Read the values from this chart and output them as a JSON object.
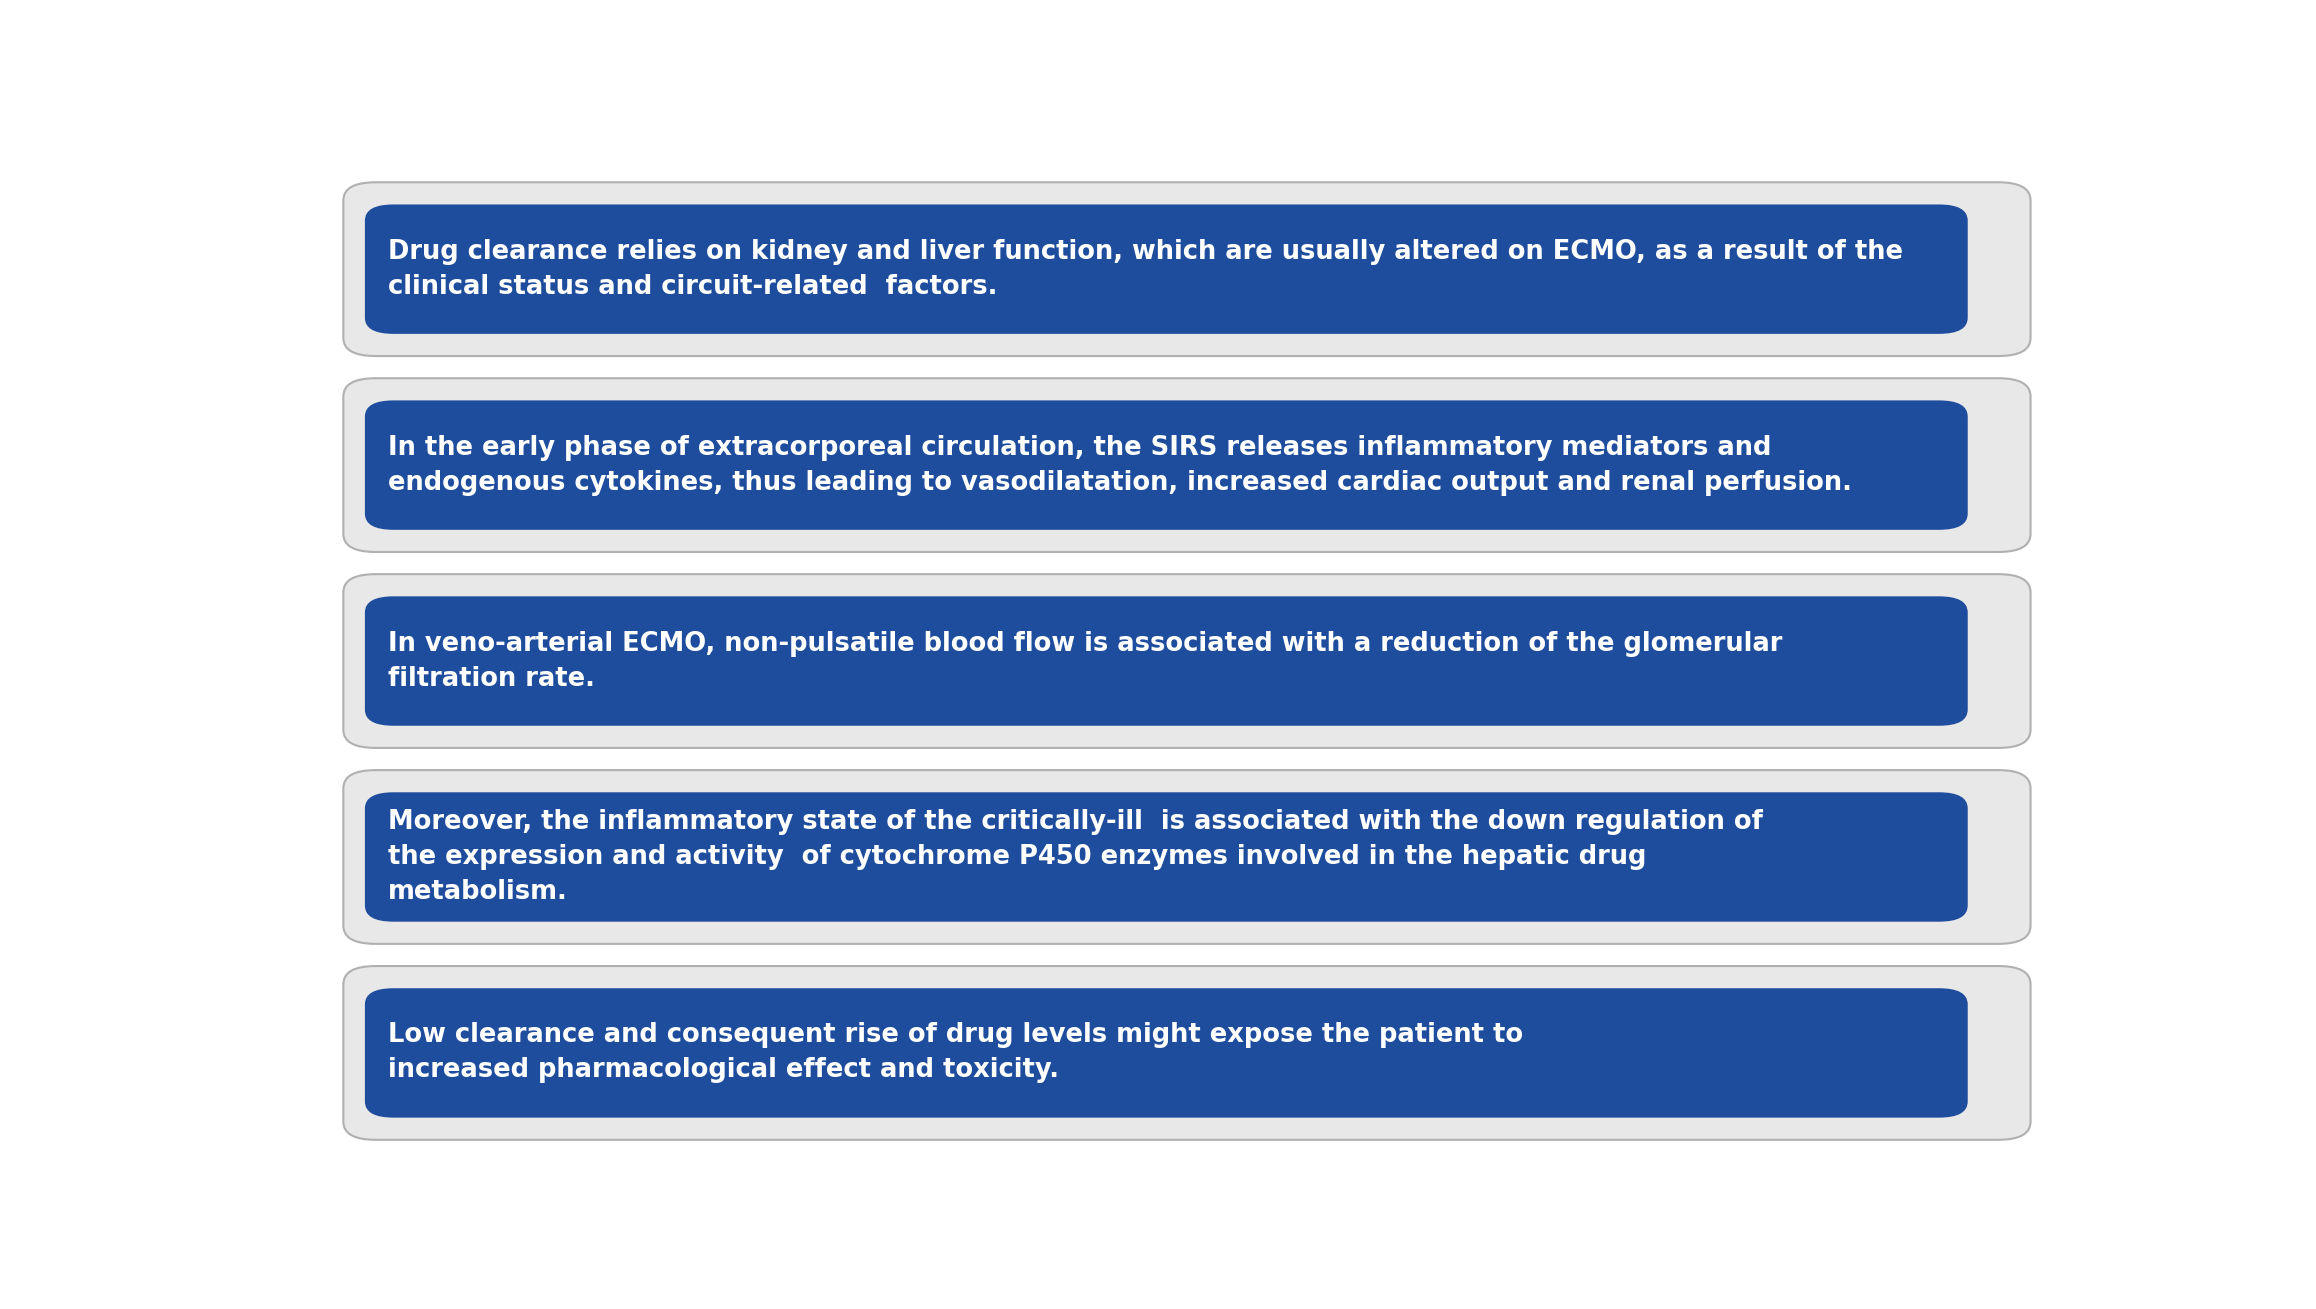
{
  "background_color": "#ffffff",
  "outer_box_facecolor": "#e8e8e8",
  "outer_box_edgecolor": "#b0b0b0",
  "inner_box_color": "#1f4d9e",
  "text_color": "#ffffff",
  "boxes": [
    {
      "text": "Drug clearance relies on kidney and liver function, which are usually altered on ECMO, as a result of the\nclinical status and circuit-related  factors."
    },
    {
      "text": "In the early phase of extracorporeal circulation, the SIRS releases inflammatory mediators and\nendogenous cytokines, thus leading to vasodilatation, increased cardiac output and renal perfusion."
    },
    {
      "text": "In veno-arterial ECMO, non-pulsatile blood flow is associated with a reduction of the glomerular\nfiltration rate."
    },
    {
      "text": "Moreover, the inflammatory state of the critically-ill  is associated with the down regulation of\nthe expression and activity  of cytochrome P450 enzymes involved in the hepatic drug\nmetabolism."
    },
    {
      "text": "Low clearance and consequent rise of drug levels might expose the patient to\nincreased pharmacological effect and toxicity."
    }
  ],
  "font_size": 18.5,
  "fig_width": 23.16,
  "fig_height": 13.09
}
